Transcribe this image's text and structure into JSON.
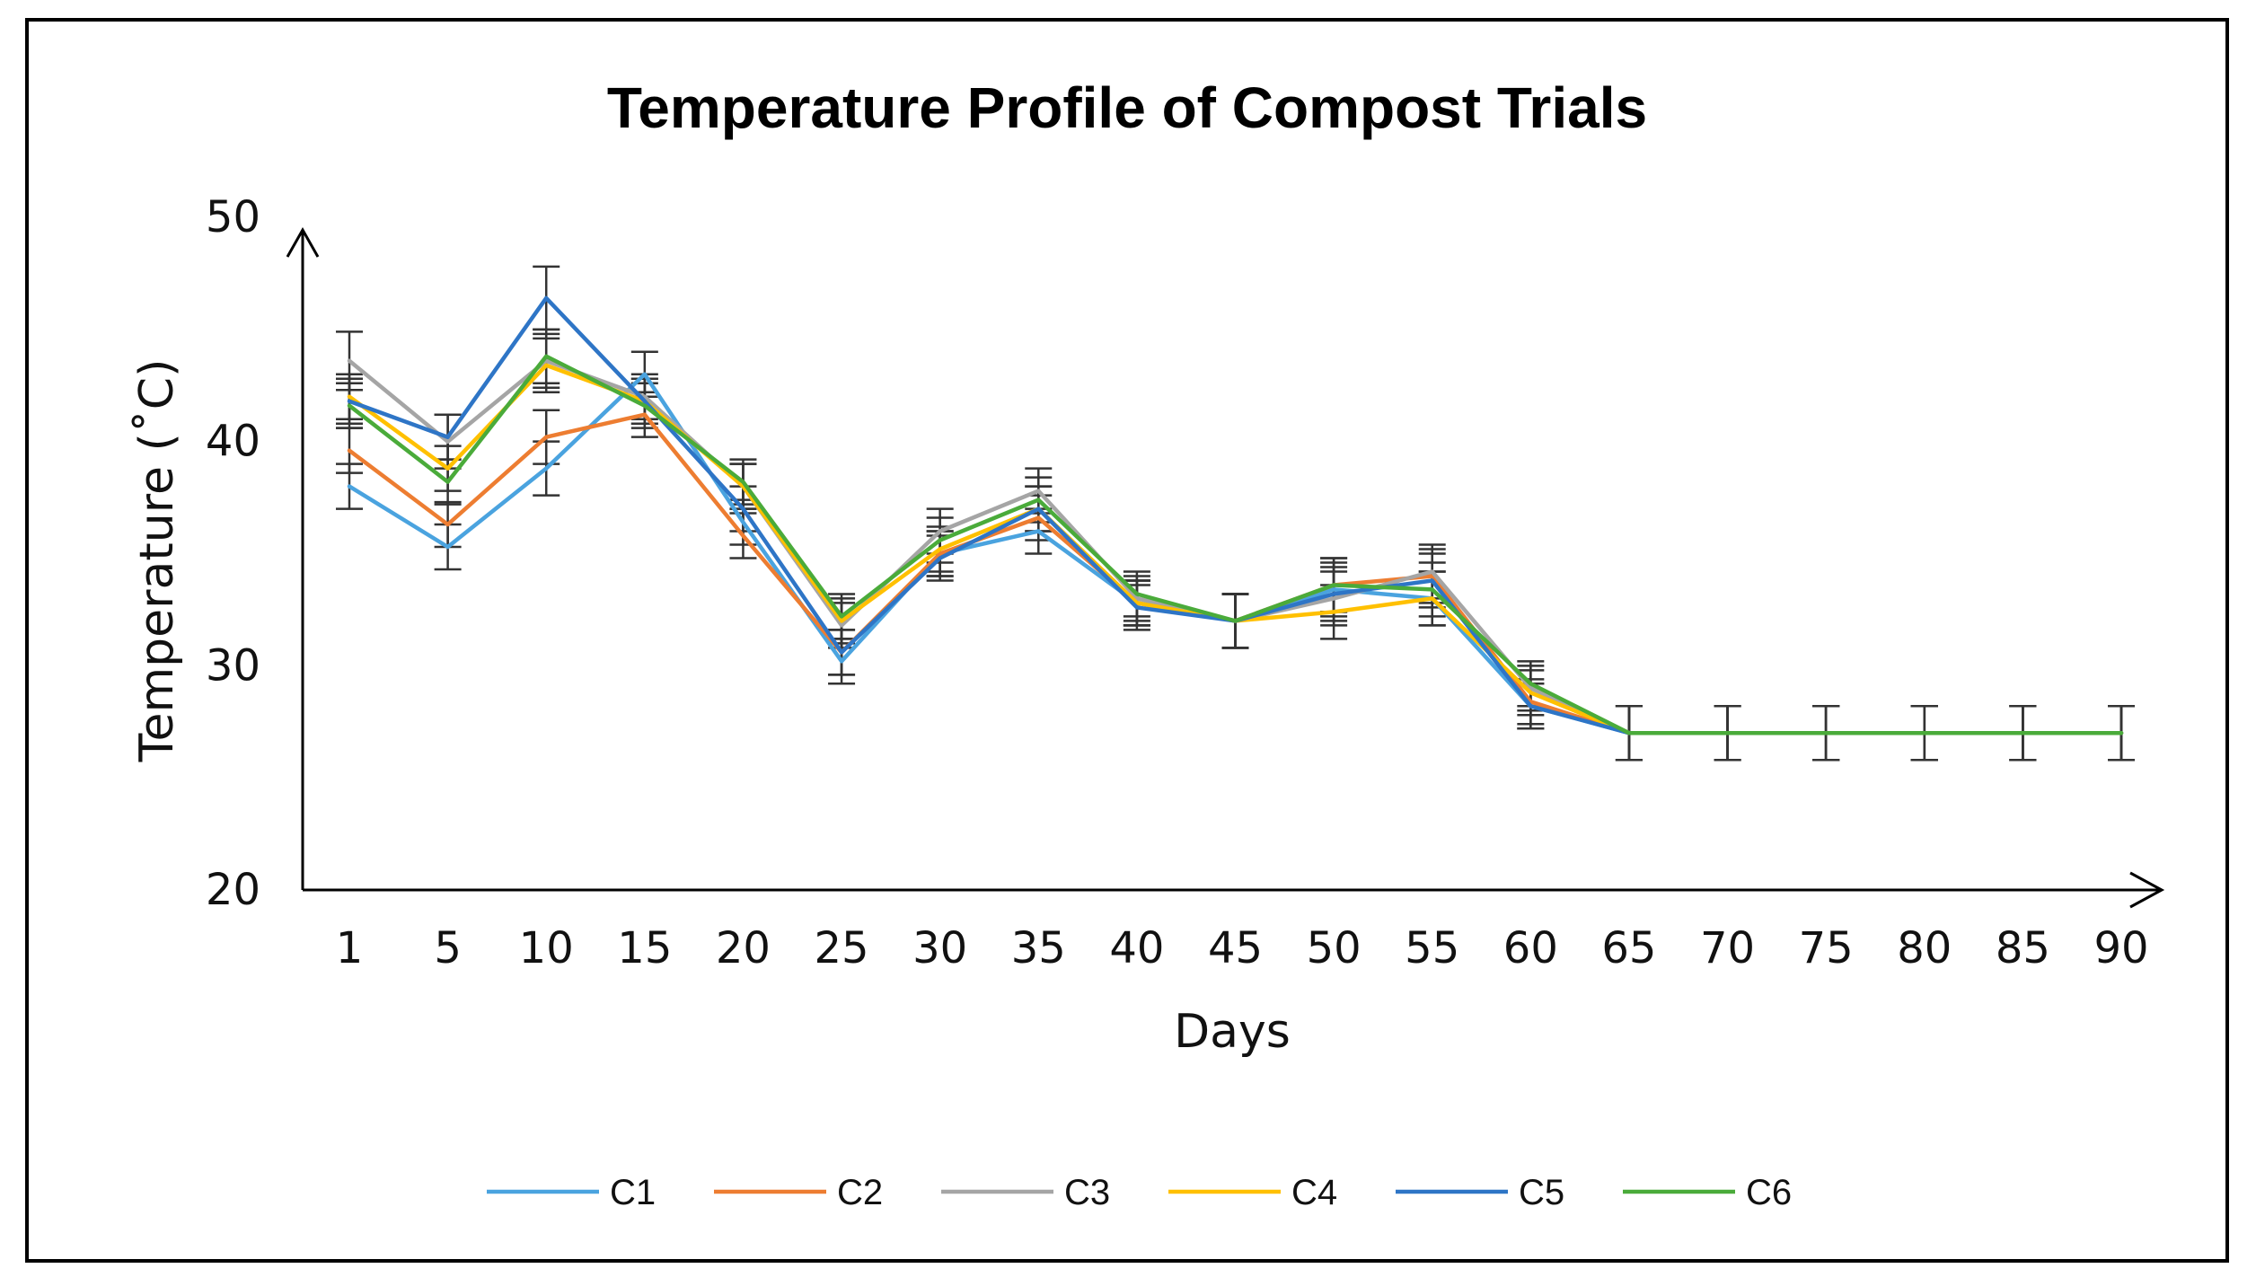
{
  "chart_data": {
    "type": "line",
    "title": "Temperature Profile of Compost Trials",
    "xlabel": "Days",
    "ylabel": "Temperature (˚C)",
    "ylim": [
      20,
      50
    ],
    "yticks": [
      20,
      30,
      40,
      50
    ],
    "grid": false,
    "legend_position": "bottom",
    "error_bars": true,
    "categories": [
      "1",
      "5",
      "10",
      "15",
      "20",
      "25",
      "30",
      "35",
      "40",
      "45",
      "50",
      "55",
      "60",
      "65",
      "70",
      "75",
      "80",
      "85",
      "90"
    ],
    "series": [
      {
        "name": "C1",
        "color": "#4aa3df",
        "values": [
          38.0,
          35.3,
          38.8,
          43.0,
          36.4,
          30.2,
          35.0,
          36.0,
          32.8,
          32.0,
          33.4,
          33.0,
          28.2,
          27.0,
          27.0,
          27.0,
          27.0,
          27.0,
          27.0
        ],
        "errors": [
          1.0,
          1.0,
          1.2,
          1.0,
          1.0,
          1.0,
          1.0,
          1.0,
          1.0,
          1.2,
          1.2,
          1.2,
          1.0,
          1.2,
          1.2,
          1.2,
          1.2,
          1.2,
          1.2
        ]
      },
      {
        "name": "C2",
        "color": "#ed7d31",
        "values": [
          39.6,
          36.3,
          40.2,
          41.2,
          35.8,
          30.6,
          35.0,
          36.6,
          32.8,
          32.0,
          33.6,
          34.0,
          28.4,
          27.0,
          27.0,
          27.0,
          27.0,
          27.0,
          27.0
        ],
        "errors": [
          1.0,
          1.0,
          1.2,
          1.0,
          1.0,
          1.0,
          1.0,
          1.0,
          1.0,
          1.2,
          1.2,
          1.2,
          1.0,
          1.2,
          1.2,
          1.2,
          1.2,
          1.2,
          1.2
        ]
      },
      {
        "name": "C3",
        "color": "#a5a5a5",
        "values": [
          43.6,
          40.0,
          43.6,
          42.0,
          38.0,
          31.8,
          36.0,
          37.8,
          33.0,
          32.0,
          33.0,
          34.2,
          29.0,
          27.0,
          27.0,
          27.0,
          27.0,
          27.0,
          27.0
        ],
        "errors": [
          1.3,
          1.2,
          1.2,
          1.0,
          1.0,
          1.0,
          1.0,
          1.0,
          1.0,
          1.2,
          1.2,
          1.2,
          1.0,
          1.2,
          1.2,
          1.2,
          1.2,
          1.2,
          1.2
        ]
      },
      {
        "name": "C4",
        "color": "#ffc000",
        "values": [
          42.0,
          38.8,
          43.4,
          41.8,
          38.0,
          32.0,
          35.2,
          37.0,
          32.8,
          32.0,
          32.4,
          33.0,
          28.8,
          27.0,
          27.0,
          27.0,
          27.0,
          27.0,
          27.0
        ],
        "errors": [
          1.0,
          1.0,
          1.2,
          1.0,
          1.0,
          1.0,
          1.0,
          1.0,
          1.0,
          1.2,
          1.2,
          1.2,
          1.0,
          1.2,
          1.2,
          1.2,
          1.2,
          1.2,
          1.2
        ]
      },
      {
        "name": "C5",
        "color": "#2e75c6",
        "values": [
          41.8,
          40.2,
          46.4,
          41.8,
          37.0,
          30.6,
          34.8,
          37.0,
          32.6,
          32.0,
          33.2,
          33.8,
          28.2,
          27.0,
          27.0,
          27.0,
          27.0,
          27.0,
          27.0
        ],
        "errors": [
          1.0,
          1.0,
          1.4,
          1.0,
          1.0,
          1.0,
          1.0,
          1.0,
          1.0,
          1.2,
          1.2,
          1.2,
          1.0,
          1.2,
          1.2,
          1.2,
          1.2,
          1.2,
          1.2
        ]
      },
      {
        "name": "C6",
        "color": "#4aab3a",
        "values": [
          41.6,
          38.2,
          43.8,
          41.6,
          38.2,
          32.2,
          35.6,
          37.4,
          33.2,
          32.0,
          33.6,
          33.4,
          29.2,
          27.0,
          27.0,
          27.0,
          27.0,
          27.0,
          27.0
        ],
        "errors": [
          1.0,
          1.0,
          1.2,
          1.0,
          1.0,
          1.0,
          1.0,
          1.0,
          1.0,
          1.2,
          1.2,
          1.2,
          1.0,
          1.2,
          1.2,
          1.2,
          1.2,
          1.2,
          1.2
        ]
      }
    ]
  }
}
